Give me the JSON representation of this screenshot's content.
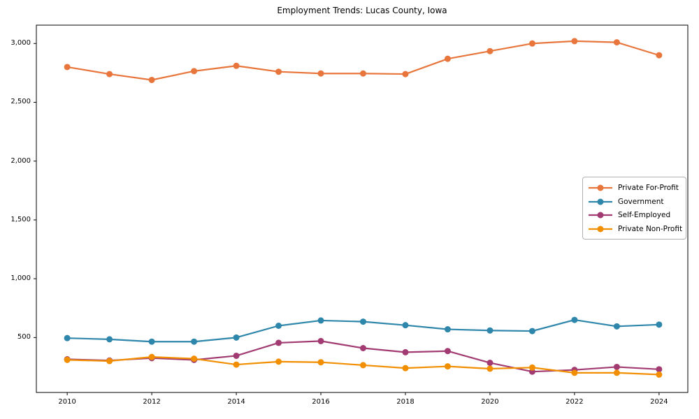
{
  "title": "Employment Trends: Lucas County, Iowa",
  "chart_data": {
    "type": "line",
    "title": "Employment Trends: Lucas County, Iowa",
    "x": [
      2010,
      2011,
      2012,
      2013,
      2014,
      2015,
      2016,
      2017,
      2018,
      2019,
      2020,
      2021,
      2022,
      2023,
      2024
    ],
    "series": [
      {
        "name": "Private For-Profit",
        "color": "#E8763C",
        "values": [
          2800,
          2740,
          2690,
          2765,
          2810,
          2760,
          2745,
          2745,
          2740,
          2870,
          2935,
          3000,
          3020,
          3010,
          2900
        ]
      },
      {
        "name": "Government",
        "color": "#2E86AB",
        "values": [
          495,
          485,
          465,
          465,
          500,
          600,
          645,
          635,
          605,
          570,
          560,
          555,
          650,
          595,
          610
        ]
      },
      {
        "name": "Self-Employed",
        "color": "#A23B72",
        "values": [
          315,
          305,
          325,
          310,
          345,
          455,
          470,
          410,
          375,
          385,
          285,
          210,
          225,
          250,
          230
        ]
      },
      {
        "name": "Private Non-Profit",
        "color": "#F18F01",
        "values": [
          310,
          300,
          335,
          320,
          270,
          295,
          290,
          265,
          240,
          255,
          235,
          245,
          200,
          200,
          185
        ]
      }
    ],
    "xticks": [
      2010,
      2012,
      2014,
      2016,
      2018,
      2020,
      2022,
      2024
    ],
    "xtick_labels": [
      "2010",
      "2012",
      "2014",
      "2016",
      "2018",
      "2020",
      "2022",
      "2024"
    ],
    "yticks": [
      500,
      1000,
      1500,
      2000,
      2500,
      3000
    ],
    "ytick_labels": [
      "500",
      "1,000",
      "1,500",
      "2,000",
      "2,500",
      "3,000"
    ],
    "xlim": [
      2009.27,
      2024.68
    ],
    "ylim": [
      33,
      3156
    ],
    "grid": false,
    "legend_position": "center right",
    "marker": "circle",
    "axis_color": "#000000"
  }
}
